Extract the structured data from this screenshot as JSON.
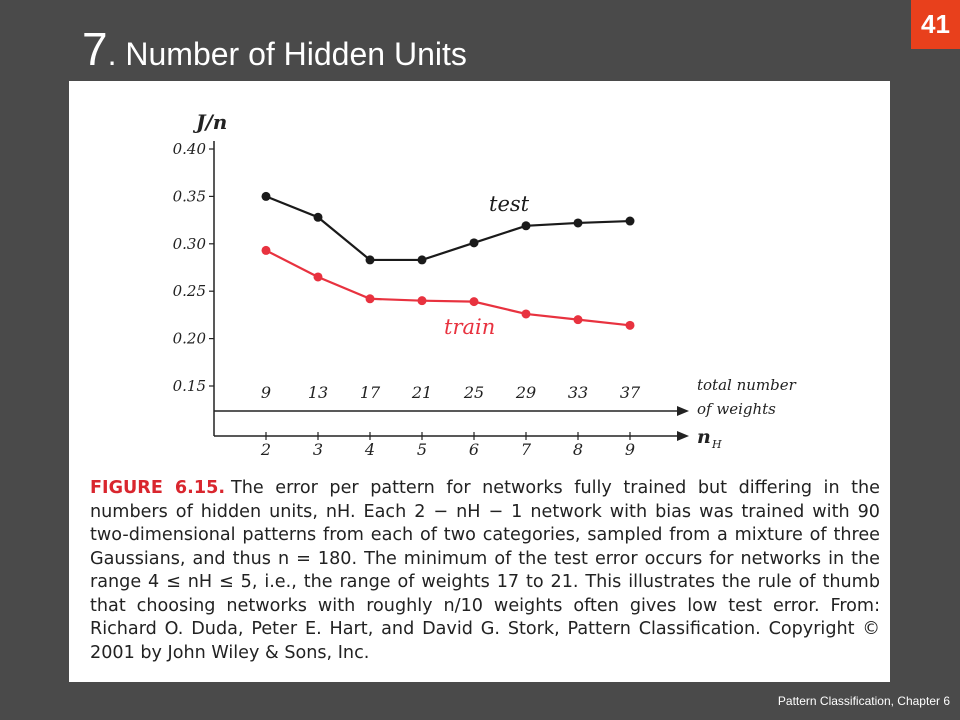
{
  "slide": {
    "title_number": "7",
    "title_text": ". Number of Hidden Units",
    "page_number": "41",
    "footer": "Pattern Classification, Chapter 6"
  },
  "colors": {
    "test": "#1a1a1a",
    "train": "#e8323f",
    "badge": "#e8401c",
    "background": "#4a4a4a"
  },
  "chart_data": {
    "type": "line",
    "ylabel": "J/n",
    "xlabel": "n",
    "xlabel_subscript": "H",
    "secondary_xlabel_line1": "total number",
    "secondary_xlabel_line2": "of weights",
    "y_ticks": [
      "0.40",
      "0.35",
      "0.30",
      "0.25",
      "0.20",
      "0.15"
    ],
    "ylim": [
      0.15,
      0.4
    ],
    "x": [
      2,
      3,
      4,
      5,
      6,
      7,
      8,
      9
    ],
    "x_tick_labels": [
      "2",
      "3",
      "4",
      "5",
      "6",
      "7",
      "8",
      "9"
    ],
    "weights": [
      "9",
      "13",
      "17",
      "21",
      "25",
      "29",
      "33",
      "37"
    ],
    "series": [
      {
        "name": "test",
        "values": [
          0.35,
          0.328,
          0.283,
          0.283,
          0.301,
          0.319,
          0.322,
          0.324
        ]
      },
      {
        "name": "train",
        "values": [
          0.293,
          0.265,
          0.242,
          0.24,
          0.239,
          0.226,
          0.22,
          0.214
        ]
      }
    ]
  },
  "caption": {
    "label": "FIGURE 6.15.",
    "text": "The error per pattern for networks fully trained but differing in the numbers of hidden units, nH. Each 2 − nH − 1 network with bias was trained with 90 two-dimensional patterns from each of two categories, sampled from a mixture of three Gaussians, and thus n = 180. The minimum of the test error occurs for networks in the range 4 ≤ nH ≤ 5, i.e., the range of weights 17 to 21. This illustrates the rule of thumb that choosing networks with roughly n/10 weights often gives low test error. From: Richard O. Duda, Peter E. Hart, and David G. Stork, Pattern Classification. Copyright © 2001 by John Wiley & Sons, Inc."
  }
}
